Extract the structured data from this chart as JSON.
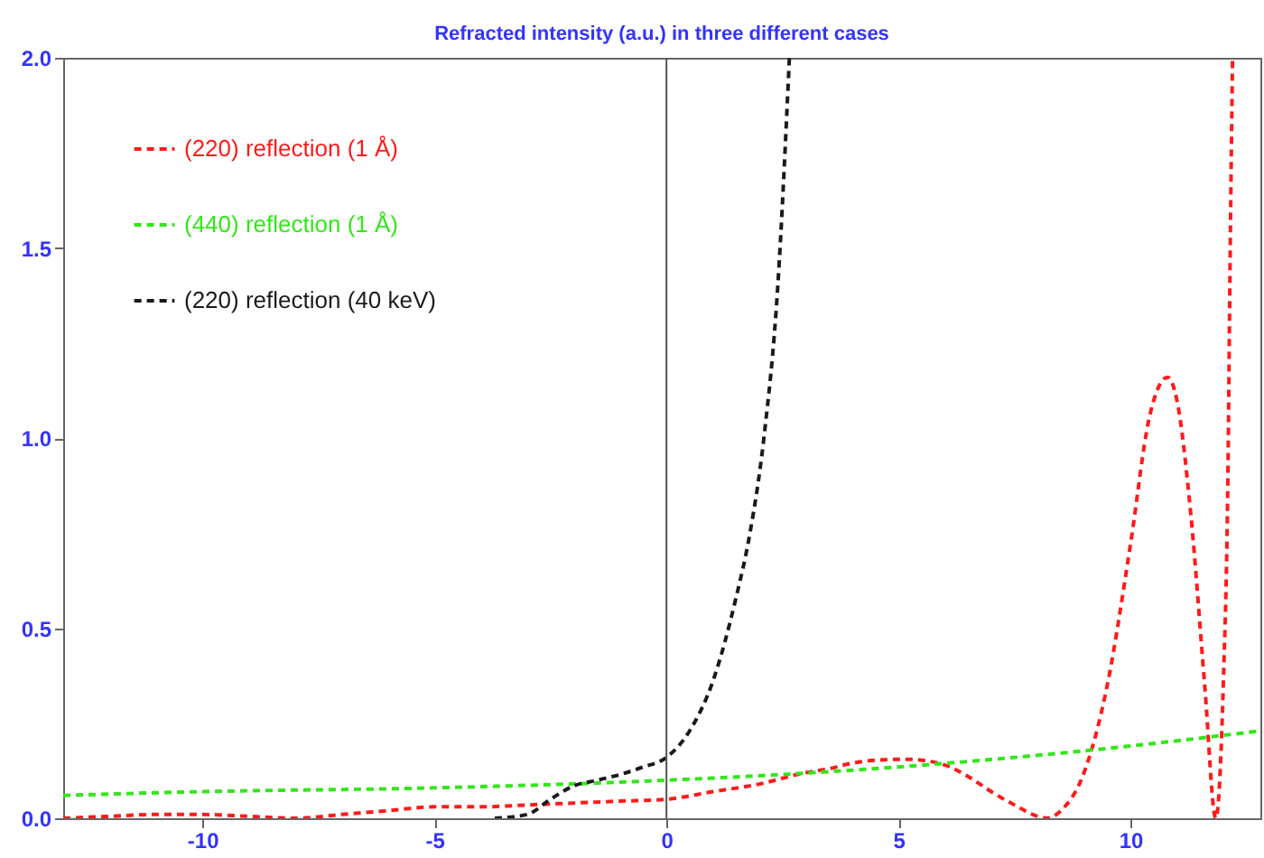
{
  "chart_data": {
    "type": "line",
    "title": "Refracted intensity (a.u.) in three different cases",
    "xlim": [
      -13,
      12.8
    ],
    "xticks": [
      -10,
      -5,
      0,
      5,
      10
    ],
    "ylim": [
      0,
      2
    ],
    "yticks": [
      {
        "value": 0,
        "label": "0.0"
      },
      {
        "value": 0.5,
        "label": "0.5"
      },
      {
        "value": 1,
        "label": "1.0"
      },
      {
        "value": 1.5,
        "label": "1.5"
      },
      {
        "value": 2,
        "label": "2.0"
      }
    ],
    "line_style": "dashed",
    "legend": "top left",
    "grid": false,
    "ref_lines": [
      {
        "axis": "x",
        "value": 0,
        "color": "#555555",
        "line_style": "solid"
      }
    ],
    "series": [
      {
        "name": "(220) reflection (1 Å)",
        "color": "#ff1a1a",
        "x": [
          -13,
          -12,
          -11,
          -10.5,
          -10,
          -9,
          -8,
          -7,
          -6,
          -5,
          -4,
          -3,
          -2,
          -1,
          0,
          1,
          2,
          3,
          3.5,
          4,
          5,
          5.2,
          6,
          6.5,
          7,
          7.5,
          8,
          8.2,
          8.5,
          9,
          9.5,
          10,
          10.4,
          10.8,
          11,
          11.3,
          11.6,
          11.84,
          12,
          12.1,
          12.15,
          12.2
        ],
        "values": [
          0,
          0.005,
          0.01,
          0.01,
          0.01,
          0.005,
          0,
          0.01,
          0.02,
          0.03,
          0.03,
          0.035,
          0.04,
          0.045,
          0.05,
          0.07,
          0.09,
          0.12,
          0.13,
          0.145,
          0.155,
          0.155,
          0.14,
          0.11,
          0.07,
          0.035,
          0.005,
          0,
          0.02,
          0.12,
          0.35,
          0.72,
          1.05,
          1.16,
          1.1,
          0.8,
          0.35,
          0,
          0.35,
          0.9,
          1.5,
          2.0
        ]
      },
      {
        "name": "(440) reflection (1 Å)",
        "color": "#33e61a",
        "x": [
          -13,
          -10,
          -5,
          0,
          5,
          10,
          12.8
        ],
        "values": [
          0.06,
          0.07,
          0.08,
          0.1,
          0.135,
          0.19,
          0.23
        ]
      },
      {
        "name": "(220) reflection (40 keV)",
        "color": "#1a1a1a",
        "x": [
          -3.7,
          -3,
          -2.5,
          -2,
          -1.5,
          -1,
          -0.5,
          0,
          0.5,
          1,
          1.5,
          1.8,
          2.1,
          2.4,
          2.65
        ],
        "values": [
          0,
          0.01,
          0.05,
          0.085,
          0.1,
          0.115,
          0.135,
          0.16,
          0.23,
          0.36,
          0.58,
          0.75,
          1.0,
          1.4,
          2.0
        ]
      }
    ]
  }
}
